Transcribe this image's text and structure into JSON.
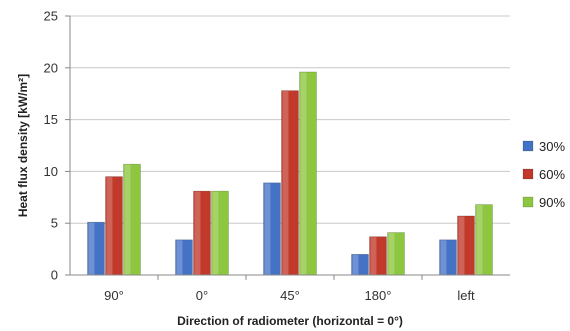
{
  "chart_data": {
    "type": "bar",
    "categories": [
      "90°",
      "0°",
      "45°",
      "180°",
      "left"
    ],
    "series": [
      {
        "name": "30%",
        "values": [
          5.1,
          3.4,
          8.9,
          2.0,
          3.4
        ],
        "color": "#4472C4"
      },
      {
        "name": "60%",
        "values": [
          9.5,
          8.1,
          17.8,
          3.7,
          5.7
        ],
        "color": "#C0392B"
      },
      {
        "name": "90%",
        "values": [
          10.7,
          8.1,
          19.6,
          4.1,
          6.8
        ],
        "color": "#8DC63F"
      }
    ],
    "xlabel": "Direction of radiometer (horizontal = 0°)",
    "ylabel": "Heat flux density [kW/m²]",
    "ylim": [
      0,
      25
    ],
    "yticks": [
      0,
      5,
      10,
      15,
      20,
      25
    ],
    "grid": true,
    "legend": "right"
  }
}
